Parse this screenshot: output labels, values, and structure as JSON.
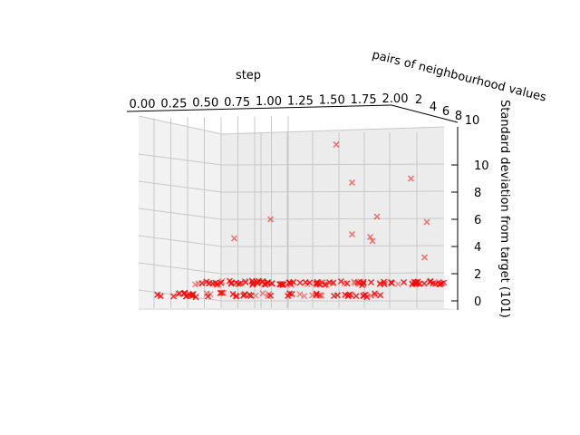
{
  "chart_data": {
    "type": "scatter",
    "projection": "3d",
    "x_axis": {
      "label": "step",
      "range": [
        0.0,
        2.0
      ],
      "ticks": [
        "0.00",
        "0.25",
        "0.50",
        "0.75",
        "1.00",
        "1.25",
        "1.50",
        "1.75",
        "2.00"
      ]
    },
    "y_axis": {
      "label": "pairs of neighbourhood values",
      "range": [
        0,
        10
      ],
      "ticks": [
        "2",
        "4",
        "6",
        "8",
        "10"
      ]
    },
    "z_axis": {
      "label": "Standard deviation from target (101)",
      "range": [
        0,
        10
      ],
      "ticks": [
        "0",
        "2",
        "4",
        "6",
        "8",
        "10"
      ]
    },
    "grid": true,
    "marker": "x",
    "color": "#ff0000",
    "outliers": [
      {
        "x": 1.3,
        "z": 11.5
      },
      {
        "x": 1.35,
        "z": 8.7
      },
      {
        "x": 1.85,
        "z": 9.0
      },
      {
        "x": 0.75,
        "z": 6.0
      },
      {
        "x": 1.6,
        "z": 6.2
      },
      {
        "x": 1.9,
        "z": 5.8
      },
      {
        "x": 0.55,
        "z": 4.6
      },
      {
        "x": 1.35,
        "z": 4.9
      },
      {
        "x": 1.55,
        "z": 4.7
      },
      {
        "x": 1.5,
        "z": 4.4
      },
      {
        "x": 1.95,
        "z": 3.2
      }
    ],
    "baseline_band": {
      "x_range": [
        0.0,
        2.0
      ],
      "z_range": [
        0.0,
        1.3
      ],
      "note": "dense cluster of near-zero points across all steps"
    }
  }
}
